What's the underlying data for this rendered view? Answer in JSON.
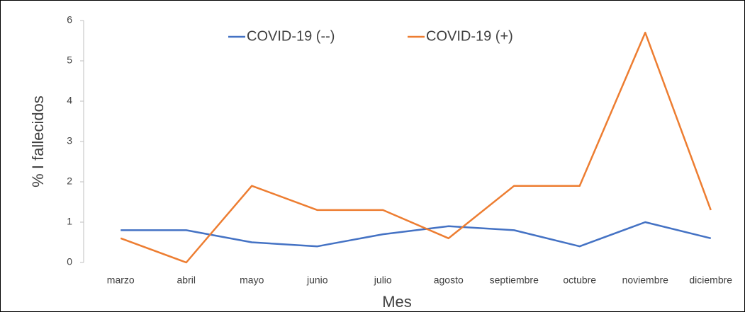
{
  "chart_data": {
    "type": "line",
    "categories": [
      "marzo",
      "abril",
      "mayo",
      "junio",
      "julio",
      "agosto",
      "septiembre",
      "octubre",
      "noviembre",
      "diciembre"
    ],
    "series": [
      {
        "name": "COVID-19 (--)",
        "color": "#4472c4",
        "values": [
          0.8,
          0.8,
          0.5,
          0.4,
          0.7,
          0.9,
          0.8,
          0.4,
          1.0,
          0.6
        ]
      },
      {
        "name": "COVID-19 (+)",
        "color": "#ed7d31",
        "values": [
          0.6,
          0,
          1.9,
          1.3,
          1.3,
          0.6,
          1.9,
          1.9,
          5.7,
          1.3
        ]
      }
    ],
    "ylim": [
      0,
      6
    ],
    "yticks": [
      0,
      1,
      2,
      3,
      4,
      5,
      6
    ],
    "xlabel": "Mes",
    "ylabel": "% I fallecidos",
    "legend": "top",
    "grid": false
  }
}
